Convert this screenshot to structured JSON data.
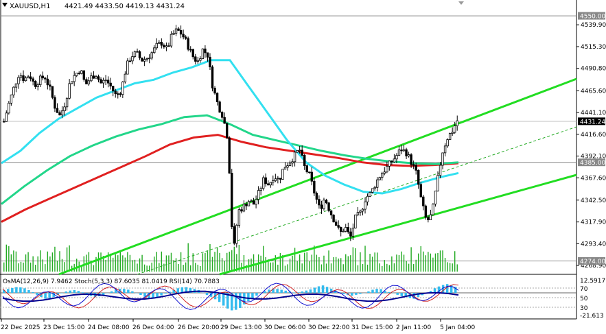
{
  "header": {
    "symbol": "XAUUSD,H1",
    "ohlc": "4421.49 4433.50 4419.13 4431.24"
  },
  "price_axis": {
    "ticks": [
      "4539.90",
      "4515.30",
      "4490.80",
      "4465.60",
      "4441.10",
      "4416.60",
      "4392.10",
      "4367.60",
      "4342.50",
      "4317.90",
      "4293.40",
      "4268.90"
    ],
    "marker_labels": {
      "top_level": "4550.00",
      "current": "4431.24",
      "mid_level": "4385.00",
      "low_level": "4274.00"
    }
  },
  "time_axis": {
    "labels": [
      "22 Dec 2025",
      "23 Dec 15:00",
      "24 Dec 08:00",
      "26 Dec 04:00",
      "26 Dec 20:00",
      "29 Dec 13:00",
      "30 Dec 06:00",
      "30 Dec 22:00",
      "31 Dec 15:00",
      "2 Jan 11:00",
      "5 Jan 04:00"
    ]
  },
  "sub_panel": {
    "indicators_label": "OsMA(12,26,9) 7.9462 Stoch(5,3,3) 87.6035 81.0419 RSI(14) 70.7883",
    "scale": [
      "12.5917",
      "70",
      "50",
      "30",
      "-21.613"
    ]
  },
  "colors": {
    "bull_candle": "#000000",
    "bear_candle": "#000000",
    "ema_fast": "#33E0F0",
    "ema_mid": "#22D68A",
    "ema_slow": "#E02020",
    "channel": "#22DD22",
    "volume": "#22AA22",
    "osma": "#33BBEE",
    "stoch_main": "#1010D0",
    "stoch_signal": "#D02020",
    "rsi": "#000090",
    "level_line": "#888888"
  },
  "chart_data": {
    "type": "candlestick",
    "symbol": "XAUUSD",
    "timeframe": "H1",
    "y_range": [
      4262,
      4557
    ],
    "levels": [
      4550.0,
      4385.0,
      4274.0
    ],
    "current_price": 4431.24,
    "close_path": [
      4431,
      4452,
      4470,
      4486,
      4478,
      4484,
      4472,
      4478,
      4482,
      4468,
      4448,
      4437,
      4452,
      4476,
      4484,
      4490,
      4472,
      4480,
      4485,
      4474,
      4478,
      4470,
      4460,
      4466,
      4492,
      4505,
      4508,
      4500,
      4502,
      4508,
      4516,
      4520,
      4512,
      4528,
      4534,
      4529,
      4518,
      4505,
      4498,
      4512,
      4506,
      4470,
      4450,
      4437,
      4410,
      4280,
      4330,
      4335,
      4342,
      4338,
      4350,
      4366,
      4360,
      4370,
      4365,
      4380,
      4385,
      4392,
      4400,
      4380,
      4370,
      4350,
      4332,
      4345,
      4330,
      4318,
      4305,
      4312,
      4300,
      4322,
      4328,
      4345,
      4350,
      4362,
      4372,
      4378,
      4385,
      4392,
      4400,
      4396,
      4385,
      4372,
      4340,
      4318,
      4326,
      4360,
      4395,
      4412,
      4420,
      4432
    ],
    "ema_fast_path": [
      4384,
      4398,
      4418,
      4434,
      4446,
      4458,
      4466,
      4474,
      4478,
      4486,
      4492,
      4500,
      4500,
      4470,
      4440,
      4410,
      4385,
      4370,
      4360,
      4352,
      4350,
      4355,
      4362,
      4368,
      4373
    ],
    "ema_mid_path": [
      4338,
      4358,
      4376,
      4392,
      4404,
      4414,
      4422,
      4428,
      4436,
      4438,
      4428,
      4416,
      4410,
      4404,
      4398,
      4393,
      4389,
      4386,
      4384,
      4383,
      4385
    ],
    "ema_slow_path": [
      4318,
      4332,
      4344,
      4356,
      4368,
      4380,
      4392,
      4405,
      4413,
      4416,
      4408,
      4402,
      4398,
      4394,
      4390,
      4385,
      4382,
      4381,
      4382,
      4384
    ]
  }
}
